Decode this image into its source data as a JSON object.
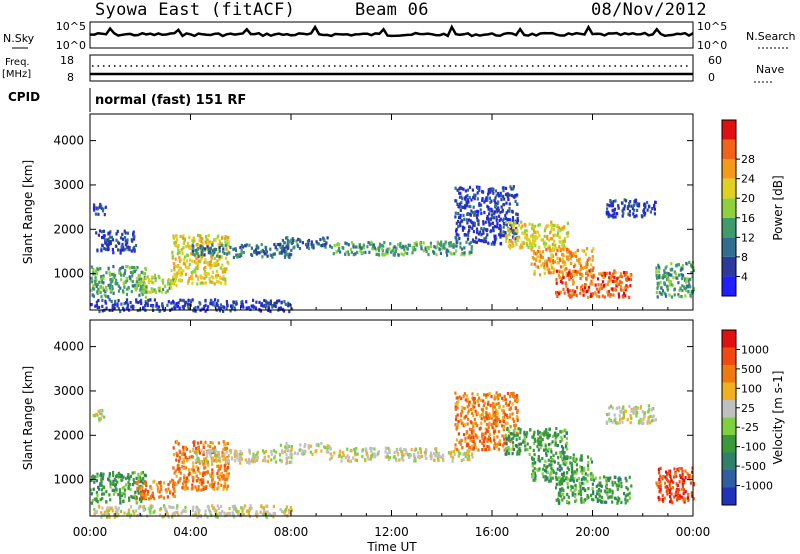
{
  "header": {
    "station": "Syowa East (fitACF)",
    "beam": "Beam 06",
    "date": "08/Nov/2012"
  },
  "params": {
    "nsky_label": "N.Sky",
    "nsearch_label": "N.Search",
    "noise_ticks": [
      "10^5",
      "10^0"
    ],
    "freq_label": "Freq.",
    "freq_unit": "[MHz]",
    "nave_label": "Nave",
    "freq_ticks": [
      "18",
      "8"
    ],
    "nave_ticks": [
      "60",
      "0"
    ],
    "cpid_label": "CPID",
    "cpid_value": "normal (fast) 151 RF"
  },
  "colors": {
    "power": [
      "#1f1fff",
      "#2a3a9e",
      "#2f6e8f",
      "#3f9a6c",
      "#8fd13a",
      "#e0d020",
      "#f39a18",
      "#f2621a",
      "#e01010"
    ],
    "velocity": [
      "#2233bb",
      "#2f5fa0",
      "#2f7f6a",
      "#3a9a3a",
      "#7ed040",
      "#c0c0c0",
      "#f0b020",
      "#f07a10",
      "#f04a10",
      "#e01010"
    ]
  },
  "chart_data": [
    {
      "type": "heatmap",
      "title": "Power",
      "xlabel": "Time UT",
      "ylabel": "Slant Range [km]",
      "x_ticks": [
        "00:00",
        "04:00",
        "08:00",
        "12:00",
        "16:00",
        "20:00",
        "00:00"
      ],
      "xlim": [
        0,
        24
      ],
      "y_ticks": [
        "1000",
        "2000",
        "3000",
        "4000"
      ],
      "ylim": [
        180,
        4600
      ],
      "colorbar": {
        "label": "Power [dB]",
        "ticks": [
          "4",
          "8",
          "12",
          "16",
          "20",
          "24",
          "28"
        ],
        "range": [
          0,
          30
        ]
      },
      "regions": [
        {
          "t0": 0.0,
          "t1": 2.2,
          "r0": 500,
          "r1": 1200,
          "level": 3
        },
        {
          "t0": 0.2,
          "t1": 1.8,
          "r0": 1500,
          "r1": 2000,
          "level": 1
        },
        {
          "t0": 0.1,
          "t1": 0.6,
          "r0": 2350,
          "r1": 2600,
          "level": 1
        },
        {
          "t0": 1.8,
          "t1": 3.4,
          "r0": 600,
          "r1": 1000,
          "level": 4
        },
        {
          "t0": 3.2,
          "t1": 5.5,
          "r0": 800,
          "r1": 1900,
          "level": 5
        },
        {
          "t0": 4.0,
          "t1": 8.0,
          "r0": 1400,
          "r1": 1700,
          "level": 2
        },
        {
          "t0": 7.5,
          "t1": 9.5,
          "r0": 1600,
          "r1": 1850,
          "level": 2
        },
        {
          "t0": 9.5,
          "t1": 15.2,
          "r0": 1450,
          "r1": 1750,
          "level": 3
        },
        {
          "t0": 14.5,
          "t1": 17.0,
          "r0": 1700,
          "r1": 3000,
          "level": 1
        },
        {
          "t0": 16.5,
          "t1": 19.0,
          "r0": 1600,
          "r1": 2200,
          "level": 5
        },
        {
          "t0": 17.5,
          "t1": 20.0,
          "r0": 1000,
          "r1": 1600,
          "level": 6
        },
        {
          "t0": 18.5,
          "t1": 21.5,
          "r0": 500,
          "r1": 1100,
          "level": 7
        },
        {
          "t0": 20.5,
          "t1": 22.5,
          "r0": 2300,
          "r1": 2700,
          "level": 1
        },
        {
          "t0": 22.5,
          "t1": 24.0,
          "r0": 500,
          "r1": 1300,
          "level": 3
        },
        {
          "t0": 0.0,
          "t1": 8.0,
          "r0": 180,
          "r1": 450,
          "level": 1
        }
      ]
    },
    {
      "type": "heatmap",
      "title": "Velocity",
      "xlabel": "Time UT",
      "ylabel": "Slant Range [km]",
      "x_ticks": [
        "00:00",
        "04:00",
        "08:00",
        "12:00",
        "16:00",
        "20:00",
        "00:00"
      ],
      "xlim": [
        0,
        24
      ],
      "y_ticks": [
        "1000",
        "2000",
        "3000",
        "4000"
      ],
      "ylim": [
        180,
        4600
      ],
      "colorbar": {
        "label": "Velocity [m s-1]",
        "ticks": [
          "1000",
          "500",
          "100",
          "25",
          "-25",
          "-100",
          "-500",
          "-1000"
        ],
        "range": [
          -1250,
          1250
        ]
      },
      "regions": [
        {
          "t0": 0.0,
          "t1": 2.2,
          "r0": 500,
          "r1": 1200,
          "level": 3
        },
        {
          "t0": 0.1,
          "t1": 0.6,
          "r0": 2350,
          "r1": 2600,
          "level": 5
        },
        {
          "t0": 1.8,
          "t1": 3.4,
          "r0": 600,
          "r1": 1000,
          "level": 7
        },
        {
          "t0": 3.2,
          "t1": 5.5,
          "r0": 800,
          "r1": 1900,
          "level": 7
        },
        {
          "t0": 4.0,
          "t1": 8.0,
          "r0": 1400,
          "r1": 1700,
          "level": 5
        },
        {
          "t0": 7.5,
          "t1": 9.5,
          "r0": 1600,
          "r1": 1850,
          "level": 5
        },
        {
          "t0": 9.5,
          "t1": 15.2,
          "r0": 1450,
          "r1": 1750,
          "level": 5
        },
        {
          "t0": 14.5,
          "t1": 17.0,
          "r0": 1700,
          "r1": 3000,
          "level": 7
        },
        {
          "t0": 16.5,
          "t1": 19.0,
          "r0": 1600,
          "r1": 2200,
          "level": 3
        },
        {
          "t0": 17.5,
          "t1": 20.0,
          "r0": 1000,
          "r1": 1600,
          "level": 3
        },
        {
          "t0": 18.5,
          "t1": 21.5,
          "r0": 500,
          "r1": 1100,
          "level": 3
        },
        {
          "t0": 20.5,
          "t1": 22.5,
          "r0": 2300,
          "r1": 2700,
          "level": 5
        },
        {
          "t0": 22.5,
          "t1": 24.0,
          "r0": 500,
          "r1": 1300,
          "level": 8
        },
        {
          "t0": 0.0,
          "t1": 8.0,
          "r0": 180,
          "r1": 450,
          "level": 5
        }
      ]
    }
  ]
}
